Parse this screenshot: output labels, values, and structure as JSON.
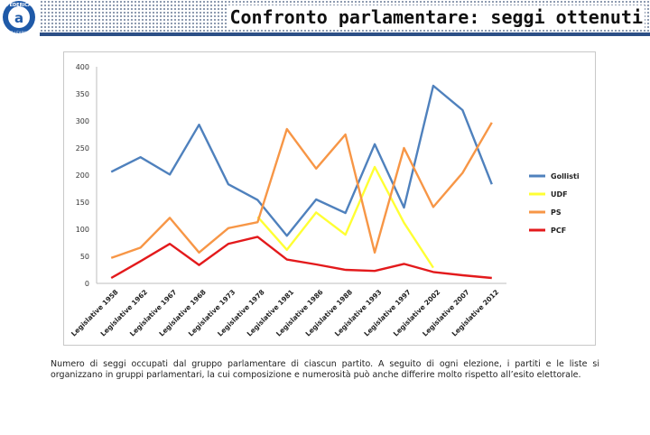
{
  "page": {
    "title": "Confronto parlamentare: seggi ottenuti",
    "logo_text": "FEDERICA",
    "logo_subtext": "WEB LEARNING",
    "caption": "Numero di seggi occupati dal gruppo parlamentare di ciascun partito. A seguito di ogni elezione, i partiti e le liste si organizzano in gruppi parlamentari, la cui composizione e numerosità può anche differire molto rispetto all’esito elettorale.",
    "colors": {
      "header_bar": "#2c4f86",
      "logo_blue": "#1f5aa8"
    }
  },
  "chart_data": {
    "type": "line",
    "categories": [
      "Legislative 1958",
      "Legislative 1962",
      "Legislative 1967",
      "Legislative 1968",
      "Legislative 1973",
      "Legislative 1978",
      "Legislative 1981",
      "Legislative 1986",
      "Legislative 1988",
      "Legislative 1993",
      "Legislative 1997",
      "Legislative 2002",
      "Legislative 2007",
      "Legislative 2012"
    ],
    "ylim": [
      0,
      400
    ],
    "yticks": [
      0,
      50,
      100,
      150,
      200,
      250,
      300,
      350,
      400
    ],
    "grid": false,
    "legend_position": "right",
    "series": [
      {
        "name": "Gollisti",
        "color": "#4f81bd",
        "values": [
          206,
          233,
          201,
          293,
          183,
          154,
          88,
          155,
          130,
          257,
          140,
          365,
          320,
          183
        ]
      },
      {
        "name": "UDF",
        "color": "#ffff33",
        "values": [
          null,
          null,
          null,
          null,
          null,
          123,
          62,
          131,
          90,
          215,
          112,
          29,
          null,
          null
        ]
      },
      {
        "name": "PS",
        "color": "#f79646",
        "values": [
          47,
          66,
          121,
          57,
          102,
          113,
          285,
          212,
          275,
          57,
          250,
          141,
          204,
          297
        ]
      },
      {
        "name": "PCF",
        "color": "#e31a1c",
        "values": [
          10,
          41,
          73,
          34,
          73,
          86,
          44,
          35,
          25,
          23,
          36,
          21,
          15,
          10
        ]
      }
    ]
  }
}
